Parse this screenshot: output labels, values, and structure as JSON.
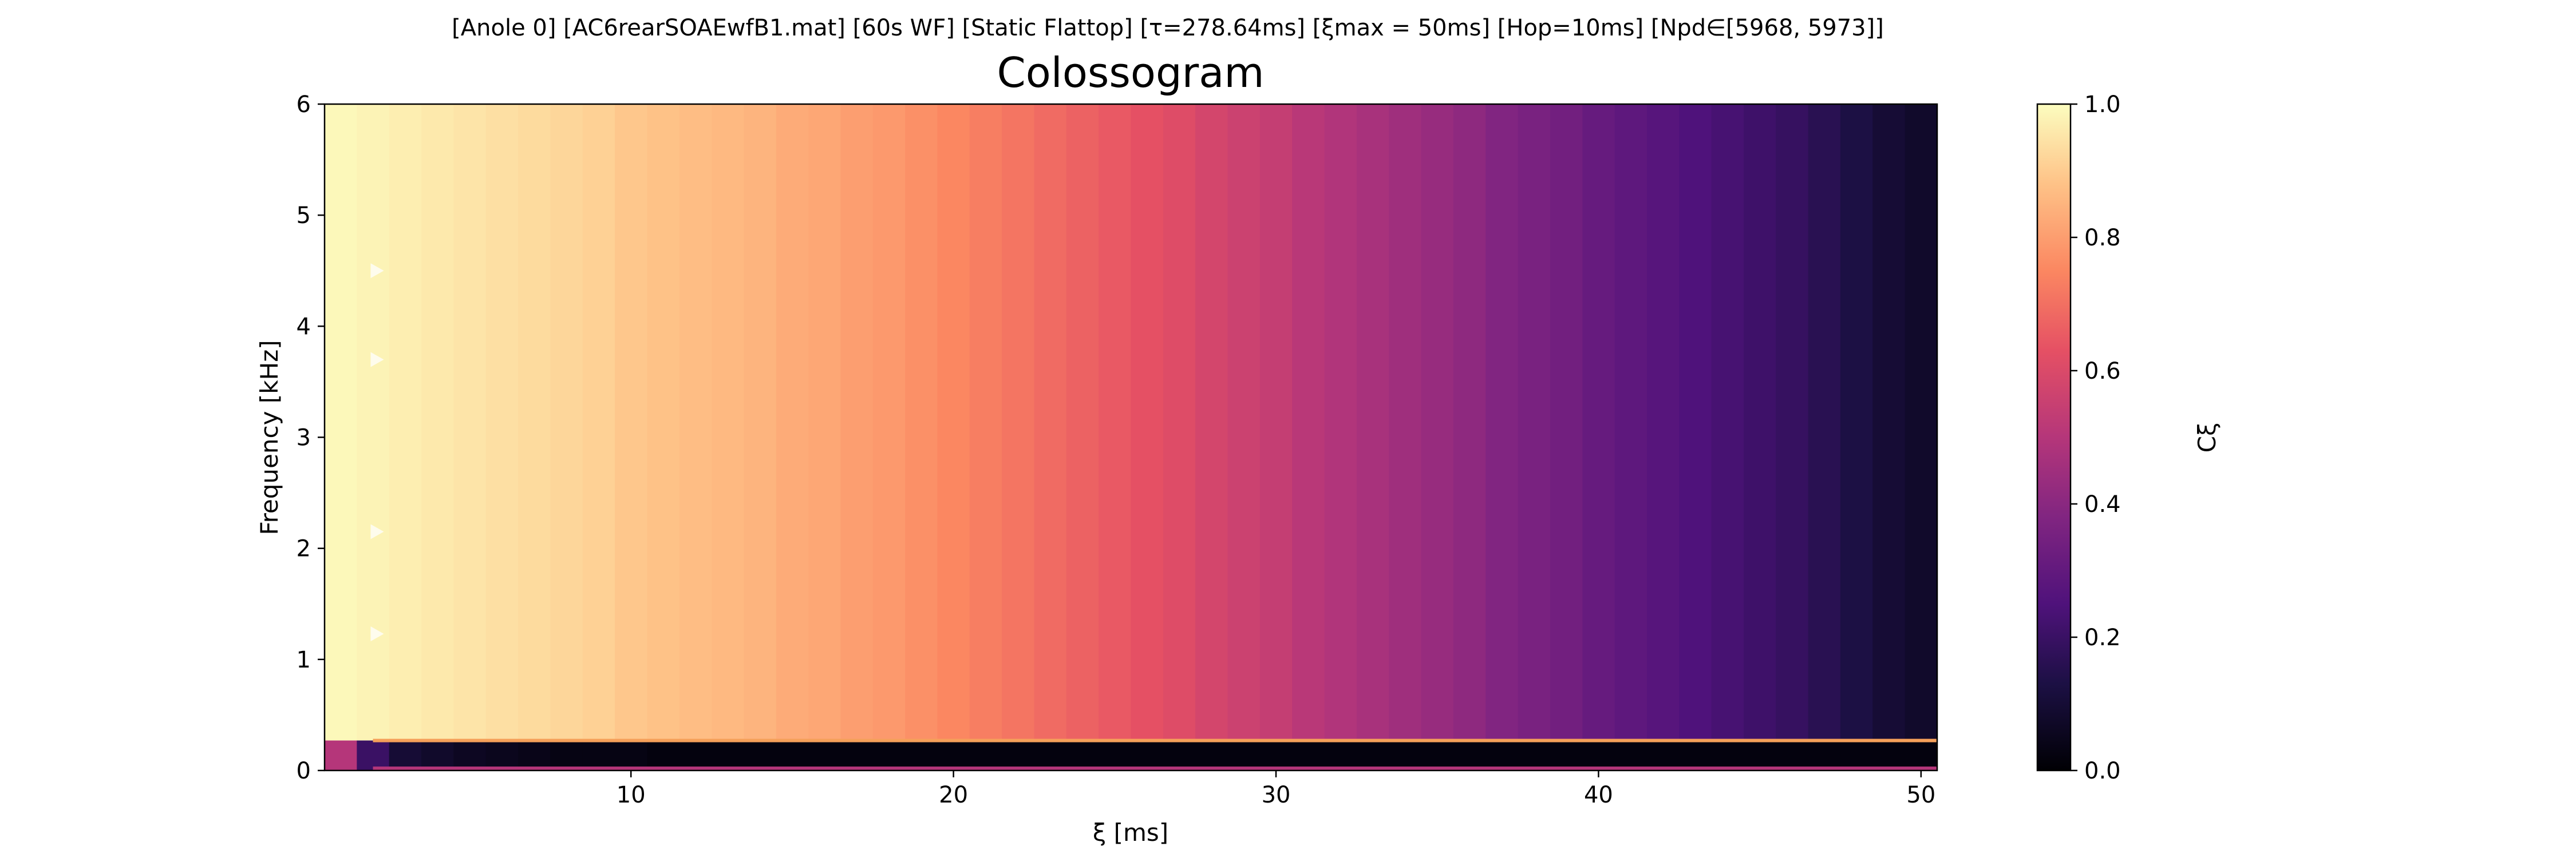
{
  "header": {
    "suptitle": "[Anole 0]   [AC6rearSOAEwfB1.mat]   [60s WF]   [Static Flattop]   [τ=278.64ms]   [ξmax = 50ms]   [Hop=10ms]   [Npd∈[5968, 5973]]"
  },
  "chart_data": {
    "type": "heatmap",
    "title": "Colossogram",
    "xlabel": "ξ [ms]",
    "ylabel": "Frequency [kHz]",
    "colorbar_label": "Cξ",
    "colormap": "magma",
    "xlim": [
      0.5,
      50.5
    ],
    "ylim": [
      0,
      6
    ],
    "clim": [
      0,
      1
    ],
    "x_ticks": [
      10,
      20,
      30,
      40,
      50
    ],
    "y_ticks": [
      0,
      1,
      2,
      3,
      4,
      5,
      6
    ],
    "colorbar_ticks": [
      "0.0",
      "0.2",
      "0.4",
      "0.6",
      "0.8",
      "1.0"
    ],
    "x_ms": [
      1,
      2,
      3,
      4,
      5,
      6,
      7,
      8,
      9,
      10,
      11,
      12,
      13,
      14,
      15,
      16,
      17,
      18,
      19,
      20,
      21,
      22,
      23,
      24,
      25,
      26,
      27,
      28,
      29,
      30,
      31,
      32,
      33,
      34,
      35,
      36,
      37,
      38,
      39,
      40,
      41,
      42,
      43,
      44,
      45,
      46,
      47,
      48,
      49,
      50
    ],
    "coherence_above_0_3kHz": [
      0.99,
      0.98,
      0.97,
      0.96,
      0.95,
      0.94,
      0.93,
      0.92,
      0.91,
      0.89,
      0.88,
      0.87,
      0.86,
      0.85,
      0.83,
      0.82,
      0.8,
      0.79,
      0.77,
      0.75,
      0.73,
      0.71,
      0.69,
      0.67,
      0.65,
      0.63,
      0.61,
      0.58,
      0.56,
      0.54,
      0.51,
      0.49,
      0.47,
      0.45,
      0.43,
      0.41,
      0.38,
      0.36,
      0.34,
      0.31,
      0.29,
      0.27,
      0.25,
      0.23,
      0.21,
      0.19,
      0.16,
      0.13,
      0.1,
      0.08
    ],
    "coherence_below_0_3kHz": [
      0.5,
      0.2,
      0.1,
      0.08,
      0.06,
      0.05,
      0.04,
      0.03,
      0.03,
      0.03,
      0.02,
      0.02,
      0.02,
      0.02,
      0.02,
      0.02,
      0.02,
      0.02,
      0.02,
      0.02,
      0.02,
      0.02,
      0.02,
      0.02,
      0.02,
      0.02,
      0.02,
      0.02,
      0.02,
      0.02,
      0.02,
      0.02,
      0.02,
      0.02,
      0.02,
      0.02,
      0.02,
      0.02,
      0.02,
      0.02,
      0.02,
      0.02,
      0.02,
      0.02,
      0.02,
      0.02,
      0.02,
      0.02,
      0.02,
      0.02
    ],
    "band_split_kHz": 0.27,
    "highlight_lines_kHz": [
      0.27,
      0.02
    ],
    "marker_triangles": [
      {
        "x_ms": 2,
        "freq_kHz": 4.5
      },
      {
        "x_ms": 2,
        "freq_kHz": 3.7
      },
      {
        "x_ms": 2,
        "freq_kHz": 2.15
      },
      {
        "x_ms": 2,
        "freq_kHz": 1.23
      }
    ]
  }
}
